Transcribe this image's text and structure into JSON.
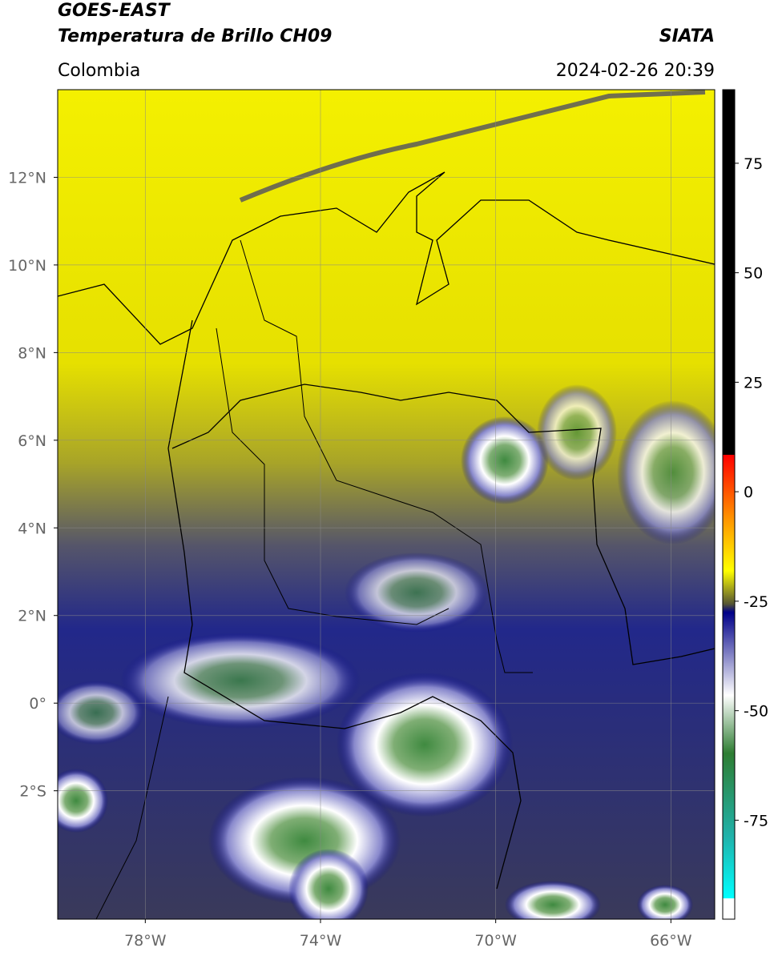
{
  "map": {
    "header": {
      "title_line1": "GOES-EAST",
      "title_line2": "Temperatura de Brillo CH09",
      "source": "SIATA",
      "region": "Colombia",
      "datetime": "2024-02-26 20:39"
    },
    "axes": {
      "xlim": [
        -80,
        -65
      ],
      "ylim": [
        -4.93,
        14
      ],
      "xticks": [
        {
          "value": -78,
          "label": "78°W"
        },
        {
          "value": -74,
          "label": "74°W"
        },
        {
          "value": -70,
          "label": "70°W"
        },
        {
          "value": -66,
          "label": "66°W"
        }
      ],
      "yticks": [
        {
          "value": 12,
          "label": "12°N"
        },
        {
          "value": 10,
          "label": "10°N"
        },
        {
          "value": 8,
          "label": "8°N"
        },
        {
          "value": 6,
          "label": "6°N"
        },
        {
          "value": 4,
          "label": "4°N"
        },
        {
          "value": 2,
          "label": "2°N"
        },
        {
          "value": 0,
          "label": "0°"
        },
        {
          "value": -2,
          "label": "2°S"
        }
      ],
      "grid": true
    },
    "colorbar": {
      "lim": [
        -97.6,
        91.8
      ],
      "ticks": [
        75,
        50,
        25,
        0,
        -25,
        -50,
        -75
      ]
    }
  }
}
